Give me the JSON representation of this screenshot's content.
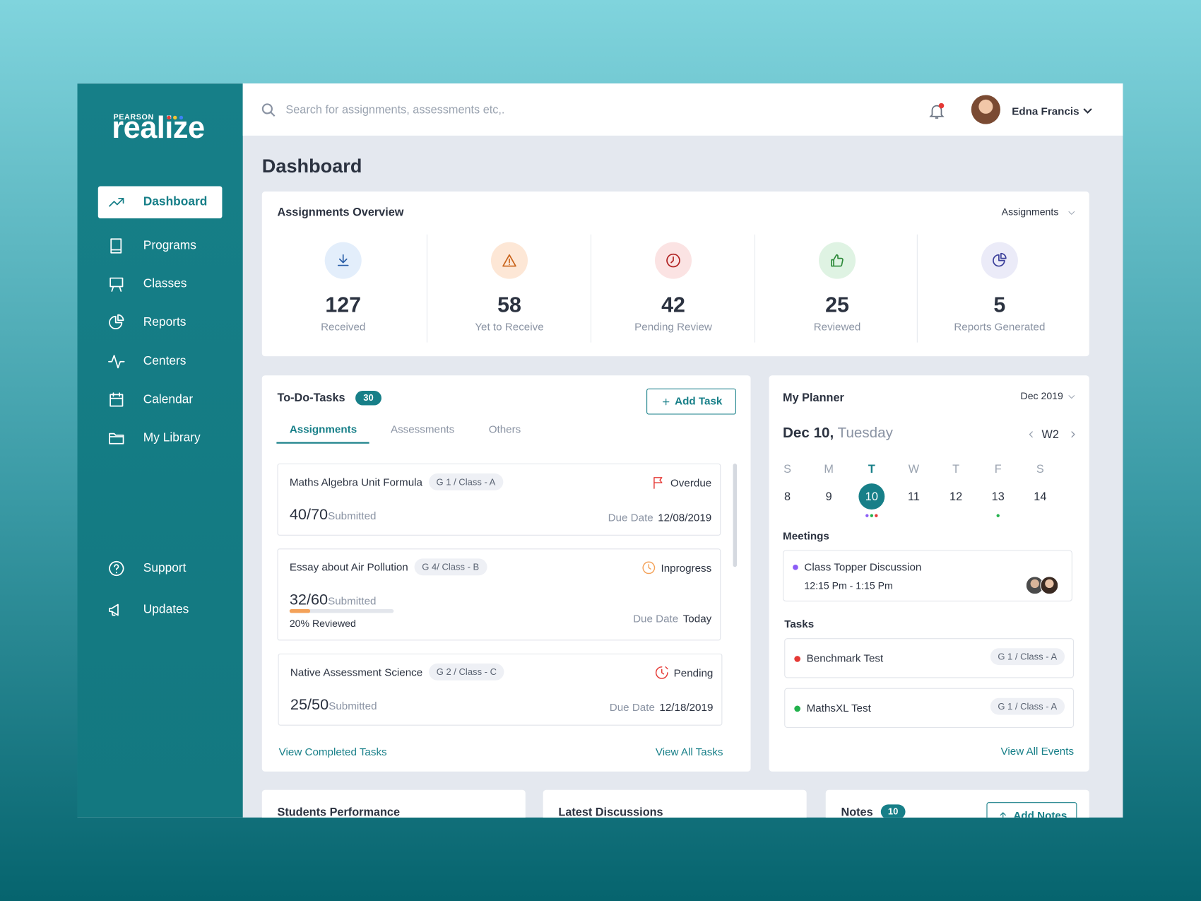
{
  "logo": {
    "brand": "PEARSON",
    "name": "realize"
  },
  "sidebar": {
    "nav": [
      {
        "label": "Dashboard",
        "active": true
      },
      {
        "label": "Programs"
      },
      {
        "label": "Classes"
      },
      {
        "label": "Reports"
      },
      {
        "label": "Centers"
      },
      {
        "label": "Calendar"
      },
      {
        "label": "My Library"
      }
    ],
    "bottom": [
      {
        "label": "Support"
      },
      {
        "label": "Updates"
      }
    ]
  },
  "header": {
    "search_placeholder": "Search for assignments, assessments etc,.",
    "user": "Edna Francis"
  },
  "page_title": "Dashboard",
  "overview": {
    "title": "Assignments Overview",
    "filter": "Assignments",
    "stats": [
      {
        "value": 127,
        "label": "Received"
      },
      {
        "value": 58,
        "label": "Yet to Receive"
      },
      {
        "value": 42,
        "label": "Pending Review"
      },
      {
        "value": 25,
        "label": "Reviewed"
      },
      {
        "value": 5,
        "label": "Reports Generated"
      }
    ]
  },
  "todo": {
    "title": "To-Do-Tasks",
    "count": 30,
    "add_button": "Add Task",
    "tabs": [
      "Assignments",
      "Assessments",
      "Others"
    ],
    "active_tab": 0,
    "tasks": [
      {
        "name": "Maths Algebra Unit Formula",
        "class": "G 1 / Class - A",
        "status": "Overdue",
        "status_color": "#e53935",
        "score": "40/70",
        "score_label": "Submitted",
        "due_label": "Due Date",
        "due": "12/08/2019"
      },
      {
        "name": "Essay about Air Pollution",
        "class": "G 4/ Class - B",
        "status": "Inprogress",
        "status_color": "#f4a259",
        "score": "32/60",
        "score_label": "Submitted",
        "reviewed": {
          "value": 20,
          "label": "20% Reviewed"
        },
        "due_label": "Due Date",
        "due": "Today"
      },
      {
        "name": "Native Assessment Science",
        "class": "G 2 / Class - C",
        "status": "Pending",
        "status_color": "#e53935",
        "score": "25/50",
        "score_label": "Submitted",
        "due_label": "Due Date",
        "due": "12/18/2019"
      }
    ],
    "view_completed": "View Completed Tasks",
    "view_all": "View All Tasks"
  },
  "planner": {
    "title": "My Planner",
    "month": "Dec 2019",
    "date": "Dec 10,",
    "weekday": "Tuesday",
    "week": "W2",
    "days": [
      {
        "letter": "S",
        "date": 8
      },
      {
        "letter": "M",
        "date": 9
      },
      {
        "letter": "T",
        "date": 10,
        "selected": true,
        "events": [
          "#8b5cf6",
          "#22b14c",
          "#e53935"
        ]
      },
      {
        "letter": "W",
        "date": 11
      },
      {
        "letter": "T",
        "date": 12
      },
      {
        "letter": "F",
        "date": 13,
        "events": [
          "#22b14c"
        ]
      },
      {
        "letter": "S",
        "date": 14
      }
    ],
    "meetings_title": "Meetings",
    "meetings": [
      {
        "title": "Class Topper Discussion",
        "time": "12:15 Pm - 1:15 Pm",
        "color": "#8b5cf6"
      }
    ],
    "tasks_title": "Tasks",
    "tasks": [
      {
        "name": "Benchmark Test",
        "class": "G 1 / Class - A",
        "color": "#e53935"
      },
      {
        "name": "MathsXL Test",
        "class": "G 1 / Class - A",
        "color": "#22b14c"
      }
    ],
    "view_all": "View All Events"
  },
  "bottom": [
    {
      "title": "Students Performance"
    },
    {
      "title": "Latest Discussions"
    },
    {
      "title": "Notes",
      "count": 10,
      "button": "Add Notes"
    }
  ]
}
